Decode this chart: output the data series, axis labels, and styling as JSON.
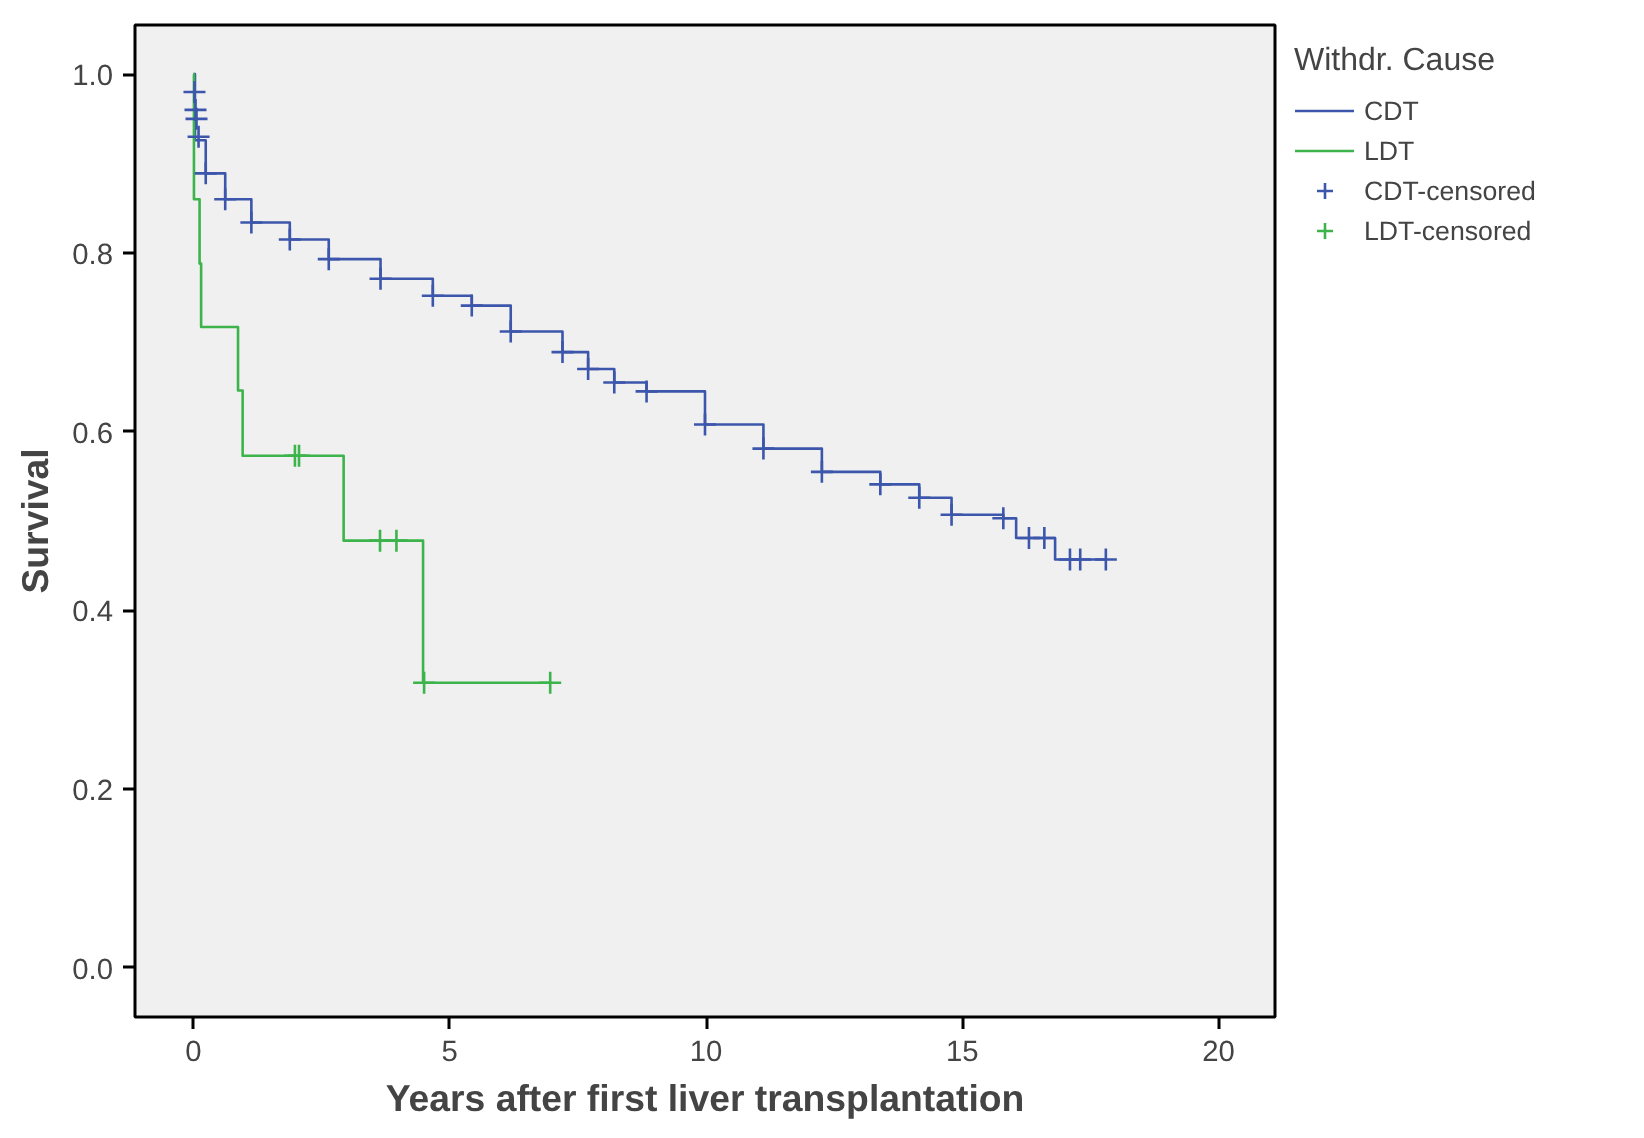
{
  "chart_data": {
    "type": "step",
    "xlabel": "Years after first liver transplantation",
    "ylabel": "Survival",
    "legend_title": "Withdr. Cause",
    "legend": "top right",
    "grid": false,
    "line_style": "solid",
    "xlim": [
      -1.14,
      21.1
    ],
    "ylim": [
      -0.055,
      1.055
    ],
    "xticks": [
      0,
      5,
      10,
      15,
      20
    ],
    "yticks": [
      {
        "value": 0,
        "label": "0.0"
      },
      {
        "value": 0.2,
        "label": "0.2"
      },
      {
        "value": 0.4,
        "label": "0.4"
      },
      {
        "value": 0.6,
        "label": "0.6"
      },
      {
        "value": 0.8,
        "label": "0.8"
      },
      {
        "value": 1,
        "label": "1.0"
      }
    ],
    "series": [
      {
        "name": "CDT",
        "color": "#3c56ab",
        "x": [
          0,
          0.03,
          0.24,
          0.62,
          1.13,
          1.88,
          2.64,
          3.65,
          4.67,
          5.43,
          6.19,
          7.2,
          7.7,
          8.21,
          8.84,
          9.98,
          11.12,
          12.26,
          13.4,
          14.16,
          14.79,
          15.8,
          16.05,
          16.81,
          17.8
        ],
        "values": [
          1.0,
          0.926,
          0.889,
          0.86,
          0.834,
          0.815,
          0.793,
          0.771,
          0.752,
          0.741,
          0.712,
          0.689,
          0.67,
          0.655,
          0.645,
          0.608,
          0.581,
          0.555,
          0.541,
          0.526,
          0.507,
          0.503,
          0.481,
          0.457,
          0.457
        ]
      },
      {
        "name": "LDT",
        "color": "#3cb44b",
        "x": [
          0,
          0.01,
          0.12,
          0.15,
          0.87,
          0.96,
          2.93,
          4.48,
          6.96
        ],
        "values": [
          1.0,
          0.86,
          0.788,
          0.717,
          0.646,
          0.573,
          0.478,
          0.319,
          0.319
        ]
      },
      {
        "name": "CDT-censored",
        "type": "scatter",
        "marker": "cross",
        "color": "#3c56ab",
        "x": [
          0.02,
          0.04,
          0.06,
          0.1,
          0.24,
          0.62,
          1.13,
          1.88,
          2.64,
          3.65,
          4.67,
          5.43,
          6.19,
          7.2,
          7.7,
          8.21,
          8.84,
          9.98,
          11.12,
          12.26,
          13.4,
          14.16,
          14.79,
          15.8,
          16.3,
          16.6,
          17.1,
          17.3,
          17.8
        ],
        "values": [
          0.98,
          0.96,
          0.95,
          0.93,
          0.889,
          0.86,
          0.834,
          0.815,
          0.793,
          0.771,
          0.752,
          0.741,
          0.712,
          0.689,
          0.67,
          0.655,
          0.645,
          0.608,
          0.581,
          0.555,
          0.541,
          0.526,
          0.507,
          0.503,
          0.481,
          0.481,
          0.457,
          0.457,
          0.457
        ]
      },
      {
        "name": "LDT-censored",
        "type": "scatter",
        "marker": "cross",
        "color": "#3cb44b",
        "x": [
          1.98,
          2.06,
          3.64,
          3.96,
          4.5,
          6.96
        ],
        "values": [
          0.573,
          0.573,
          0.478,
          0.478,
          0.319,
          0.319
        ]
      }
    ]
  }
}
